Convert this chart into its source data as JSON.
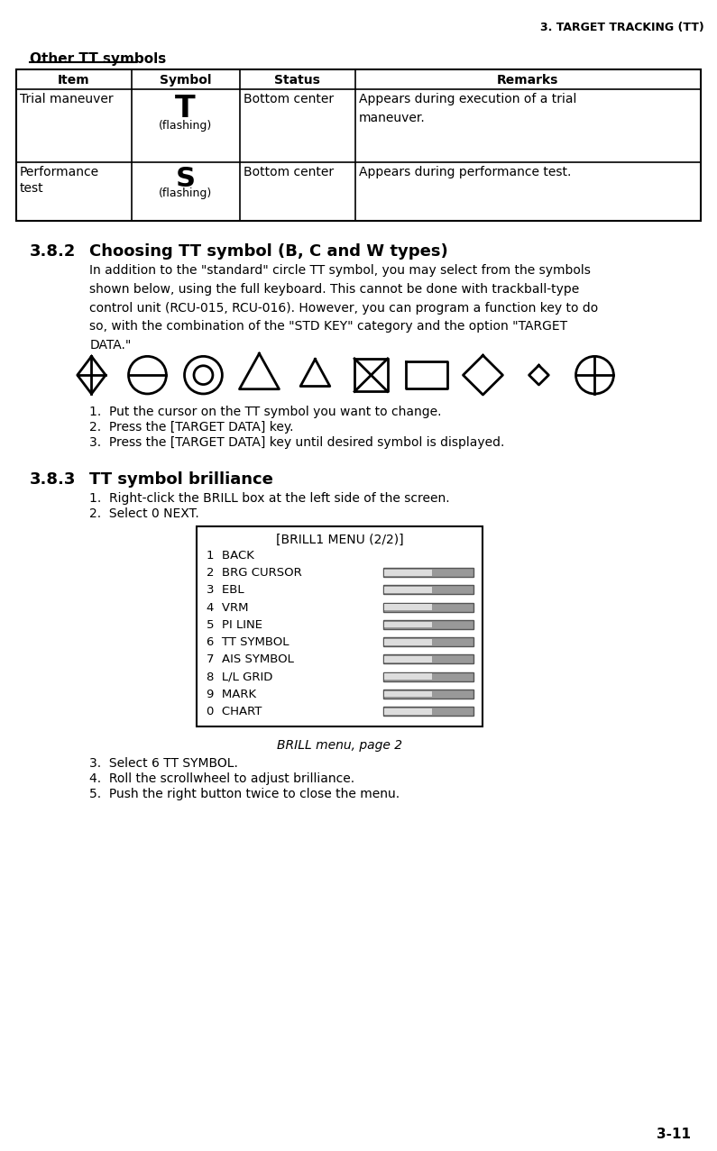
{
  "header_right": "3. TARGET TRACKING (TT)",
  "section_title": "Other TT symbols",
  "table_headers": [
    "Item",
    "Symbol",
    "Status",
    "Remarks"
  ],
  "table_rows": [
    {
      "item": "Trial maneuver",
      "symbol_main": "T",
      "symbol_sub": "(flashing)",
      "status": "Bottom center",
      "remarks": "Appears during execution of a trial\nmaneuver."
    },
    {
      "item": "Performance\ntest",
      "symbol_main": "S",
      "symbol_sub": "(flashing)",
      "status": "Bottom center",
      "remarks": "Appears during performance test."
    }
  ],
  "section382_num": "3.8.2",
  "section382_title": "Choosing TT symbol (B, C and W types)",
  "section382_body": "In addition to the \"standard\" circle TT symbol, you may select from the symbols\nshown below, using the full keyboard. This cannot be done with trackball-type\ncontrol unit (RCU-015, RCU-016). However, you can program a function key to do\nso, with the combination of the \"STD KEY\" category and the option \"TARGET\nDATA.\"",
  "steps382": [
    "Put the cursor on the TT symbol you want to change.",
    "Press the [TARGET DATA] key.",
    "Press the [TARGET DATA] key until desired symbol is displayed."
  ],
  "section383_num": "3.8.3",
  "section383_title": "TT symbol brilliance",
  "steps383_pre": [
    "Right-click the BRILL box at the left side of the screen.",
    "Select 0 NEXT."
  ],
  "menu_title": "[BRILL1 MENU (2/2)]",
  "menu_items": [
    "1  BACK",
    "2  BRG CURSOR",
    "3  EBL",
    "4  VRM",
    "5  PI LINE",
    "6  TT SYMBOL",
    "7  AIS SYMBOL",
    "8  L/L GRID",
    "9  MARK",
    "0  CHART"
  ],
  "menu_caption": "BRILL menu, page 2",
  "steps383_post": [
    "Select 6 TT SYMBOL.",
    "Roll the scrollwheel to adjust brilliance.",
    "Push the right button twice to close the menu."
  ],
  "footer": "3-11",
  "bg_color": "#ffffff",
  "text_color": "#000000"
}
